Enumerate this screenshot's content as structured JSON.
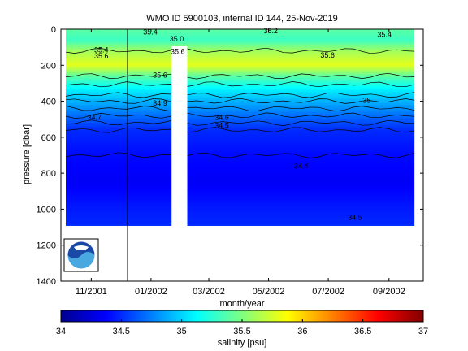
{
  "chart_data": {
    "type": "heatmap",
    "title": "WMO ID 5900103, internal ID 144, 25-Nov-2019",
    "xlabel": "month/year",
    "ylabel": "pressure [dbar]",
    "x_ticks": [
      "11/2001",
      "01/2002",
      "03/2002",
      "05/2002",
      "07/2002",
      "09/2002"
    ],
    "y_ticks": [
      0,
      200,
      400,
      600,
      800,
      1000,
      1200,
      1400
    ],
    "ylim": [
      1400,
      0
    ],
    "y_reversed": true,
    "colorbar": {
      "label": "salinity [psu]",
      "ticks": [
        34,
        34.5,
        35,
        35.5,
        36,
        36.5,
        37
      ],
      "range": [
        34,
        37
      ],
      "colormap": "jet"
    },
    "salinity_profile": [
      {
        "pressure": 0,
        "salinity": 35.4
      },
      {
        "pressure": 60,
        "salinity": 35.3
      },
      {
        "pressure": 120,
        "salinity": 35.6
      },
      {
        "pressure": 200,
        "salinity": 35.8
      },
      {
        "pressure": 260,
        "salinity": 35.4
      },
      {
        "pressure": 330,
        "salinity": 35.1
      },
      {
        "pressure": 400,
        "salinity": 34.9
      },
      {
        "pressure": 480,
        "salinity": 34.7
      },
      {
        "pressure": 560,
        "salinity": 34.5
      },
      {
        "pressure": 700,
        "salinity": 34.4
      },
      {
        "pressure": 850,
        "salinity": 34.35
      },
      {
        "pressure": 1000,
        "salinity": 34.45
      },
      {
        "pressure": 1100,
        "salinity": 34.5
      }
    ],
    "contour_labels": [
      {
        "text": "35.4",
        "time": "2001-12-24",
        "pressure": 15
      },
      {
        "text": "35.0",
        "time": "2002-01-20",
        "pressure": 55
      },
      {
        "text": "35.2",
        "time": "2002-04-26",
        "pressure": 10
      },
      {
        "text": "35.4",
        "time": "2002-08-20",
        "pressure": 30
      },
      {
        "text": "35.4",
        "time": "2001-11-04",
        "pressure": 115
      },
      {
        "text": "35.6",
        "time": "2001-11-04",
        "pressure": 150
      },
      {
        "text": "35.6",
        "time": "2002-01-21",
        "pressure": 125
      },
      {
        "text": "35.6",
        "time": "2002-06-23",
        "pressure": 145
      },
      {
        "text": "35.6",
        "time": "2002-01-03",
        "pressure": 255
      },
      {
        "text": "35",
        "time": "2002-08-05",
        "pressure": 395
      },
      {
        "text": "34.9",
        "time": "2002-01-03",
        "pressure": 410
      },
      {
        "text": "34.7",
        "time": "2001-10-28",
        "pressure": 490
      },
      {
        "text": "34.6",
        "time": "2002-03-07",
        "pressure": 490
      },
      {
        "text": "34.5",
        "time": "2002-03-07",
        "pressure": 535
      },
      {
        "text": "34.4",
        "time": "2002-05-27",
        "pressure": 760
      },
      {
        "text": "34.5",
        "time": "2002-07-21",
        "pressure": 1045
      }
    ],
    "data_gaps": [
      {
        "start": "2002-01-22",
        "end": "2002-02-07"
      }
    ],
    "logo": "noaa-logo"
  }
}
